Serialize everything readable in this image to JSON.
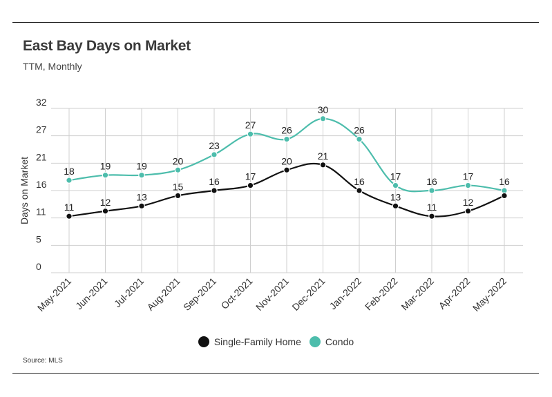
{
  "header": {
    "title": "East Bay Days on Market",
    "subtitle": "TTM, Monthly"
  },
  "footer": {
    "source": "Source:  MLS"
  },
  "colors": {
    "single_family": "#111111",
    "condo": "#4dbdac",
    "grid": "#cfcfcf"
  },
  "chart_data": {
    "type": "line",
    "title": "East Bay Days on Market",
    "subtitle": "TTM, Monthly",
    "xlabel": "",
    "ylabel": "Days on Market",
    "ylim": [
      0,
      32
    ],
    "y_ticks": [
      "0",
      "5",
      "11",
      "16",
      "21",
      "27",
      "32"
    ],
    "y_tick_values": [
      0,
      5.33,
      10.67,
      16,
      21.33,
      26.67,
      32
    ],
    "grid": true,
    "legend_position": "bottom",
    "categories": [
      "May-2021",
      "Jun-2021",
      "Jul-2021",
      "Aug-2021",
      "Sep-2021",
      "Oct-2021",
      "Nov-2021",
      "Dec-2021",
      "Jan-2022",
      "Feb-2022",
      "Mar-2022",
      "Apr-2022",
      "May-2022"
    ],
    "series": [
      {
        "name": "Single-Family Home",
        "color": "#111111",
        "values": [
          11,
          12,
          13,
          15,
          16,
          17,
          20,
          21,
          16,
          13,
          11,
          12,
          15
        ],
        "labels": [
          "11",
          "12",
          "13",
          "15",
          "16",
          "17",
          "20",
          "21",
          "16",
          "13",
          "11",
          "12",
          ""
        ]
      },
      {
        "name": "Condo",
        "color": "#4dbdac",
        "values": [
          18,
          19,
          19,
          20,
          23,
          27,
          26,
          30,
          26,
          17,
          16,
          17,
          16
        ],
        "labels": [
          "18",
          "19",
          "19",
          "20",
          "23",
          "27",
          "26",
          "30",
          "26",
          "17",
          "16",
          "17",
          "16"
        ]
      }
    ]
  }
}
